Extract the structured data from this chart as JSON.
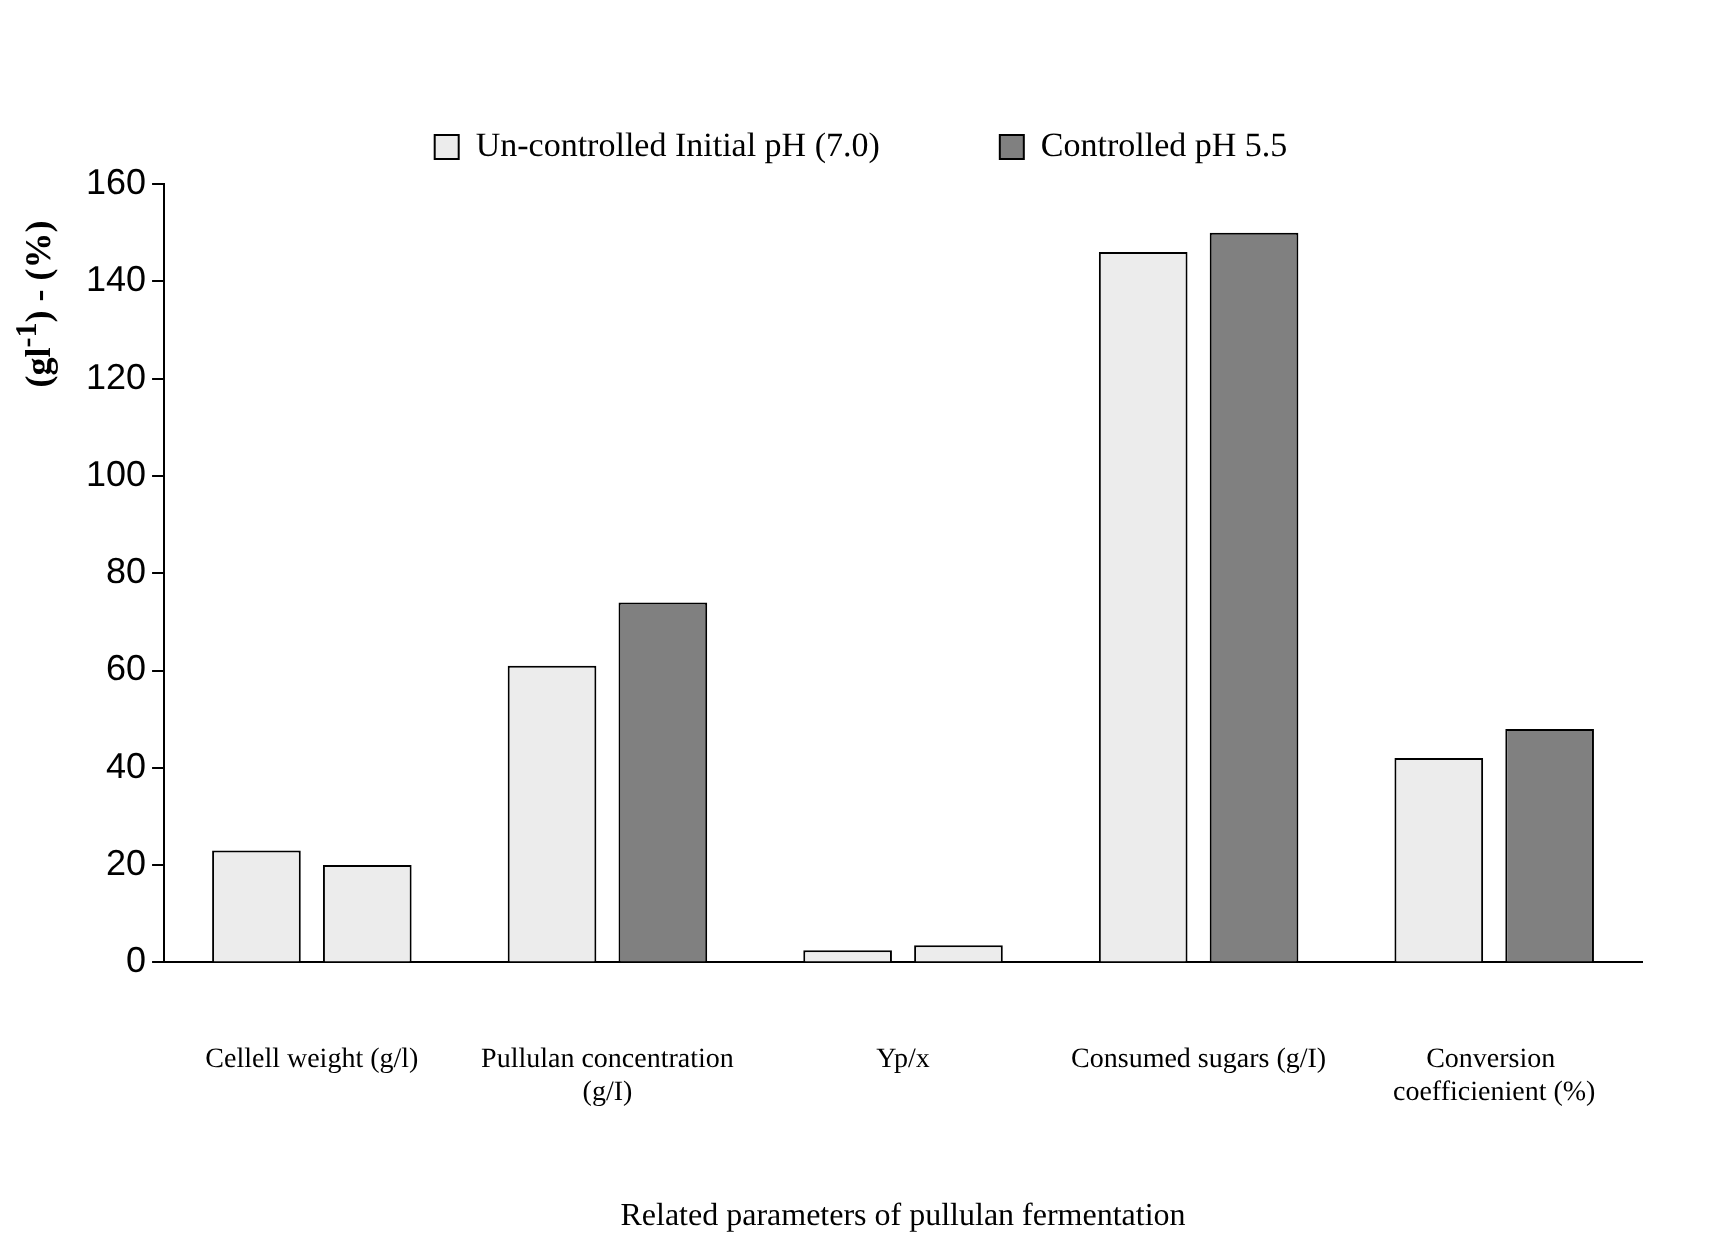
{
  "chart_data": {
    "type": "bar",
    "xlabel": "Related parameters of pullulan fermentation",
    "ylabel": "(gl$^{-1}$) - (%)",
    "categories": [
      "Cellell weight (g/l)",
      "Pullulan concentration (g/I)",
      "Yp/x",
      "Consumed sugars (g/I)",
      "Conversion  coefficienient (%)"
    ],
    "series": [
      {
        "name": "Un-controlled Initial pH (7.0)",
        "color": "#ececec",
        "values": [
          23,
          61,
          2.5,
          146,
          42
        ]
      },
      {
        "name": "Controlled pH 5.5",
        "color": "#808080",
        "colors": [
          "#ececec",
          "#808080",
          "#ececec",
          "#808080",
          "#808080"
        ],
        "values": [
          20,
          74,
          3.5,
          150,
          48
        ]
      }
    ],
    "ylim": [
      0,
      160
    ],
    "yticks": [
      0,
      20,
      40,
      60,
      80,
      100,
      120,
      140,
      160
    ],
    "grid": false,
    "legend": "top"
  }
}
